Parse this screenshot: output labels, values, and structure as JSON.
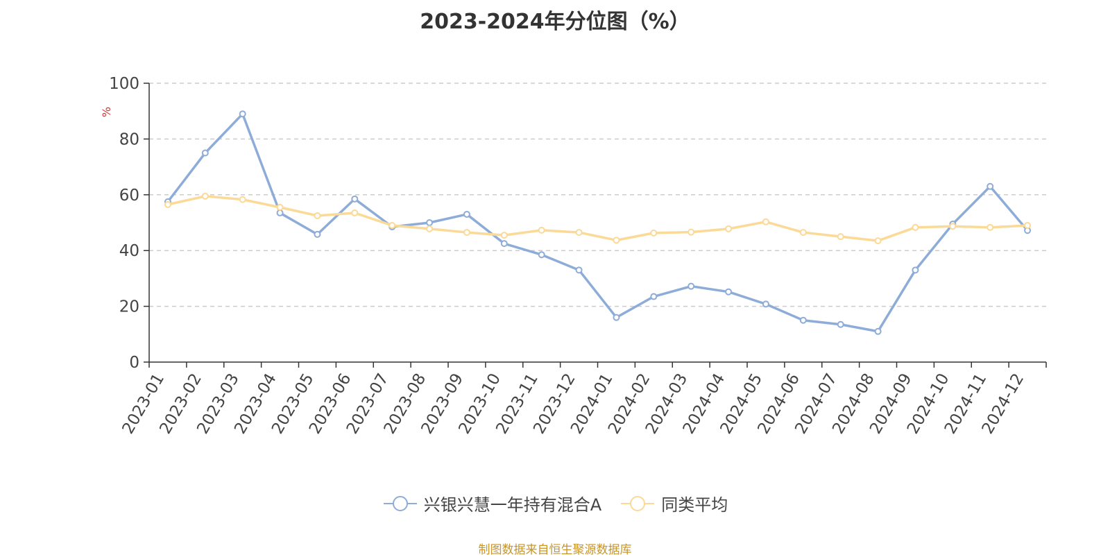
{
  "source_note": "制图数据来自恒生聚源数据库",
  "y_unit": "%",
  "colors": {
    "series1": "#8eacd8",
    "series2": "#fbd997",
    "grid": "#cccccc",
    "axis": "#333333"
  },
  "chart_data": {
    "type": "line",
    "title": "2023-2024年分位图（%）",
    "xlabel": "",
    "ylabel": "%",
    "ylim": [
      0,
      100
    ],
    "yticks": [
      0,
      20,
      40,
      60,
      80,
      100
    ],
    "grid": true,
    "legend_position": "bottom",
    "categories": [
      "2023-01",
      "2023-02",
      "2023-03",
      "2023-04",
      "2023-05",
      "2023-06",
      "2023-07",
      "2023-08",
      "2023-09",
      "2023-10",
      "2023-11",
      "2023-12",
      "2024-01",
      "2024-02",
      "2024-03",
      "2024-04",
      "2024-05",
      "2024-06",
      "2024-07",
      "2024-08",
      "2024-09",
      "2024-10",
      "2024-11",
      "2024-12"
    ],
    "series": [
      {
        "name": "兴银兴慧一年持有混合A",
        "values": [
          57.5,
          75,
          89,
          53.5,
          45.8,
          58.5,
          48.5,
          50,
          53,
          42.5,
          38.5,
          33,
          16,
          23.5,
          27.2,
          25.2,
          20.8,
          15,
          13.5,
          11,
          33,
          49.5,
          63,
          47.2
        ]
      },
      {
        "name": "同类平均",
        "values": [
          56.5,
          59.5,
          58.3,
          55.5,
          52.5,
          53.5,
          49,
          47.8,
          46.5,
          45.5,
          47.3,
          46.5,
          43.7,
          46.3,
          46.6,
          47.8,
          50.3,
          46.5,
          45,
          43.5,
          48.3,
          48.7,
          48.3,
          49
        ]
      }
    ]
  }
}
